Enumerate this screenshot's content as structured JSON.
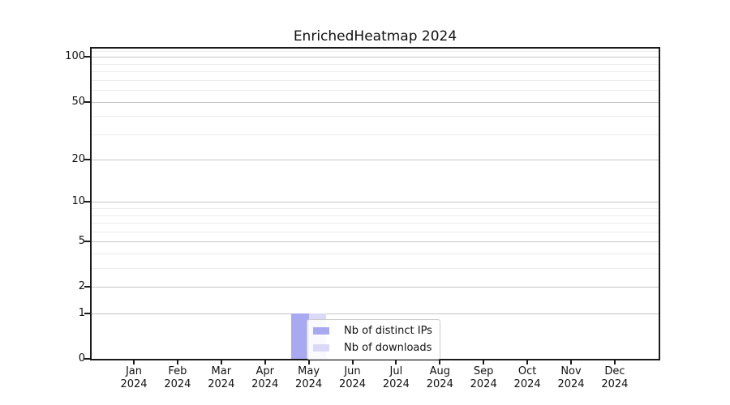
{
  "chart_data": {
    "type": "bar",
    "title": "EnrichedHeatmap 2024",
    "x_months": [
      "Jan",
      "Feb",
      "Mar",
      "Apr",
      "May",
      "Jun",
      "Jul",
      "Aug",
      "Sep",
      "Oct",
      "Nov",
      "Dec"
    ],
    "x_year": "2024",
    "series": [
      {
        "name": "Nb of distinct IPs",
        "color": "#a9a9f1",
        "values": [
          0,
          0,
          0,
          0,
          1,
          0,
          0,
          0,
          0,
          0,
          0,
          0
        ]
      },
      {
        "name": "Nb of downloads",
        "color": "#dadaf8",
        "values": [
          0,
          0,
          0,
          0,
          1,
          0,
          0,
          0,
          0,
          0,
          0,
          0
        ]
      }
    ],
    "y_scale": "log1p",
    "ylim": [
      0,
      114
    ],
    "y_major_ticks": [
      0,
      1,
      2,
      5,
      10,
      20,
      50,
      100
    ],
    "y_minor_gridlines": [
      3,
      4,
      6,
      7,
      8,
      9,
      30,
      40,
      60,
      70,
      80,
      90,
      110
    ],
    "grid": true,
    "legend_location": "inside-bottom-center"
  },
  "colors": {
    "background": "#ffffff",
    "spine": "#1a1a1a",
    "grid_major": "#c6c6c6",
    "grid_minor": "#ebebeb",
    "text": "#111111",
    "legend_border": "#cbcbcb"
  }
}
